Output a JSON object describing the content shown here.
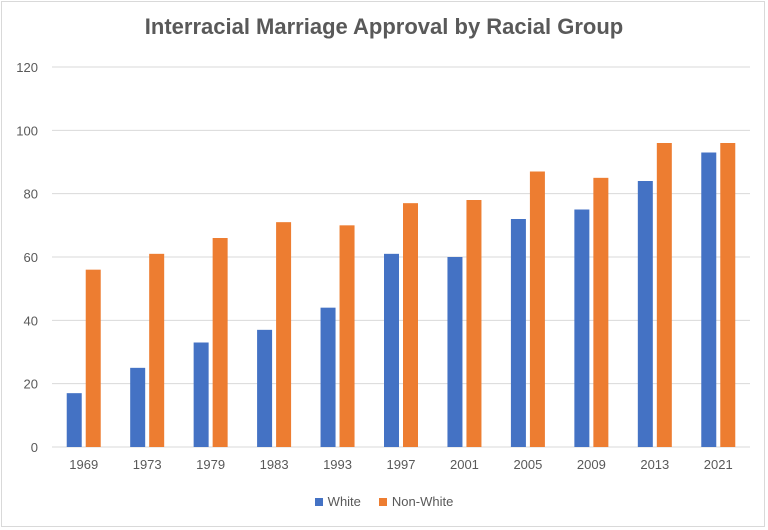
{
  "chart_data": {
    "type": "bar",
    "title": "Interracial Marriage Approval by Racial Group",
    "categories": [
      "1969",
      "1973",
      "1979",
      "1983",
      "1993",
      "1997",
      "2001",
      "2005",
      "2009",
      "2013",
      "2021"
    ],
    "series": [
      {
        "name": "White",
        "color": "#4472C4",
        "values": [
          17,
          25,
          33,
          37,
          44,
          61,
          60,
          72,
          75,
          84,
          93
        ]
      },
      {
        "name": "Non-White",
        "color": "#ED7D31",
        "values": [
          56,
          61,
          66,
          71,
          70,
          77,
          78,
          87,
          85,
          96,
          96
        ]
      }
    ],
    "xlabel": "",
    "ylabel": "",
    "ylim": [
      0,
      120
    ],
    "yticks": [
      0,
      20,
      40,
      60,
      80,
      100,
      120
    ],
    "grid": true,
    "legend": "bottom"
  }
}
